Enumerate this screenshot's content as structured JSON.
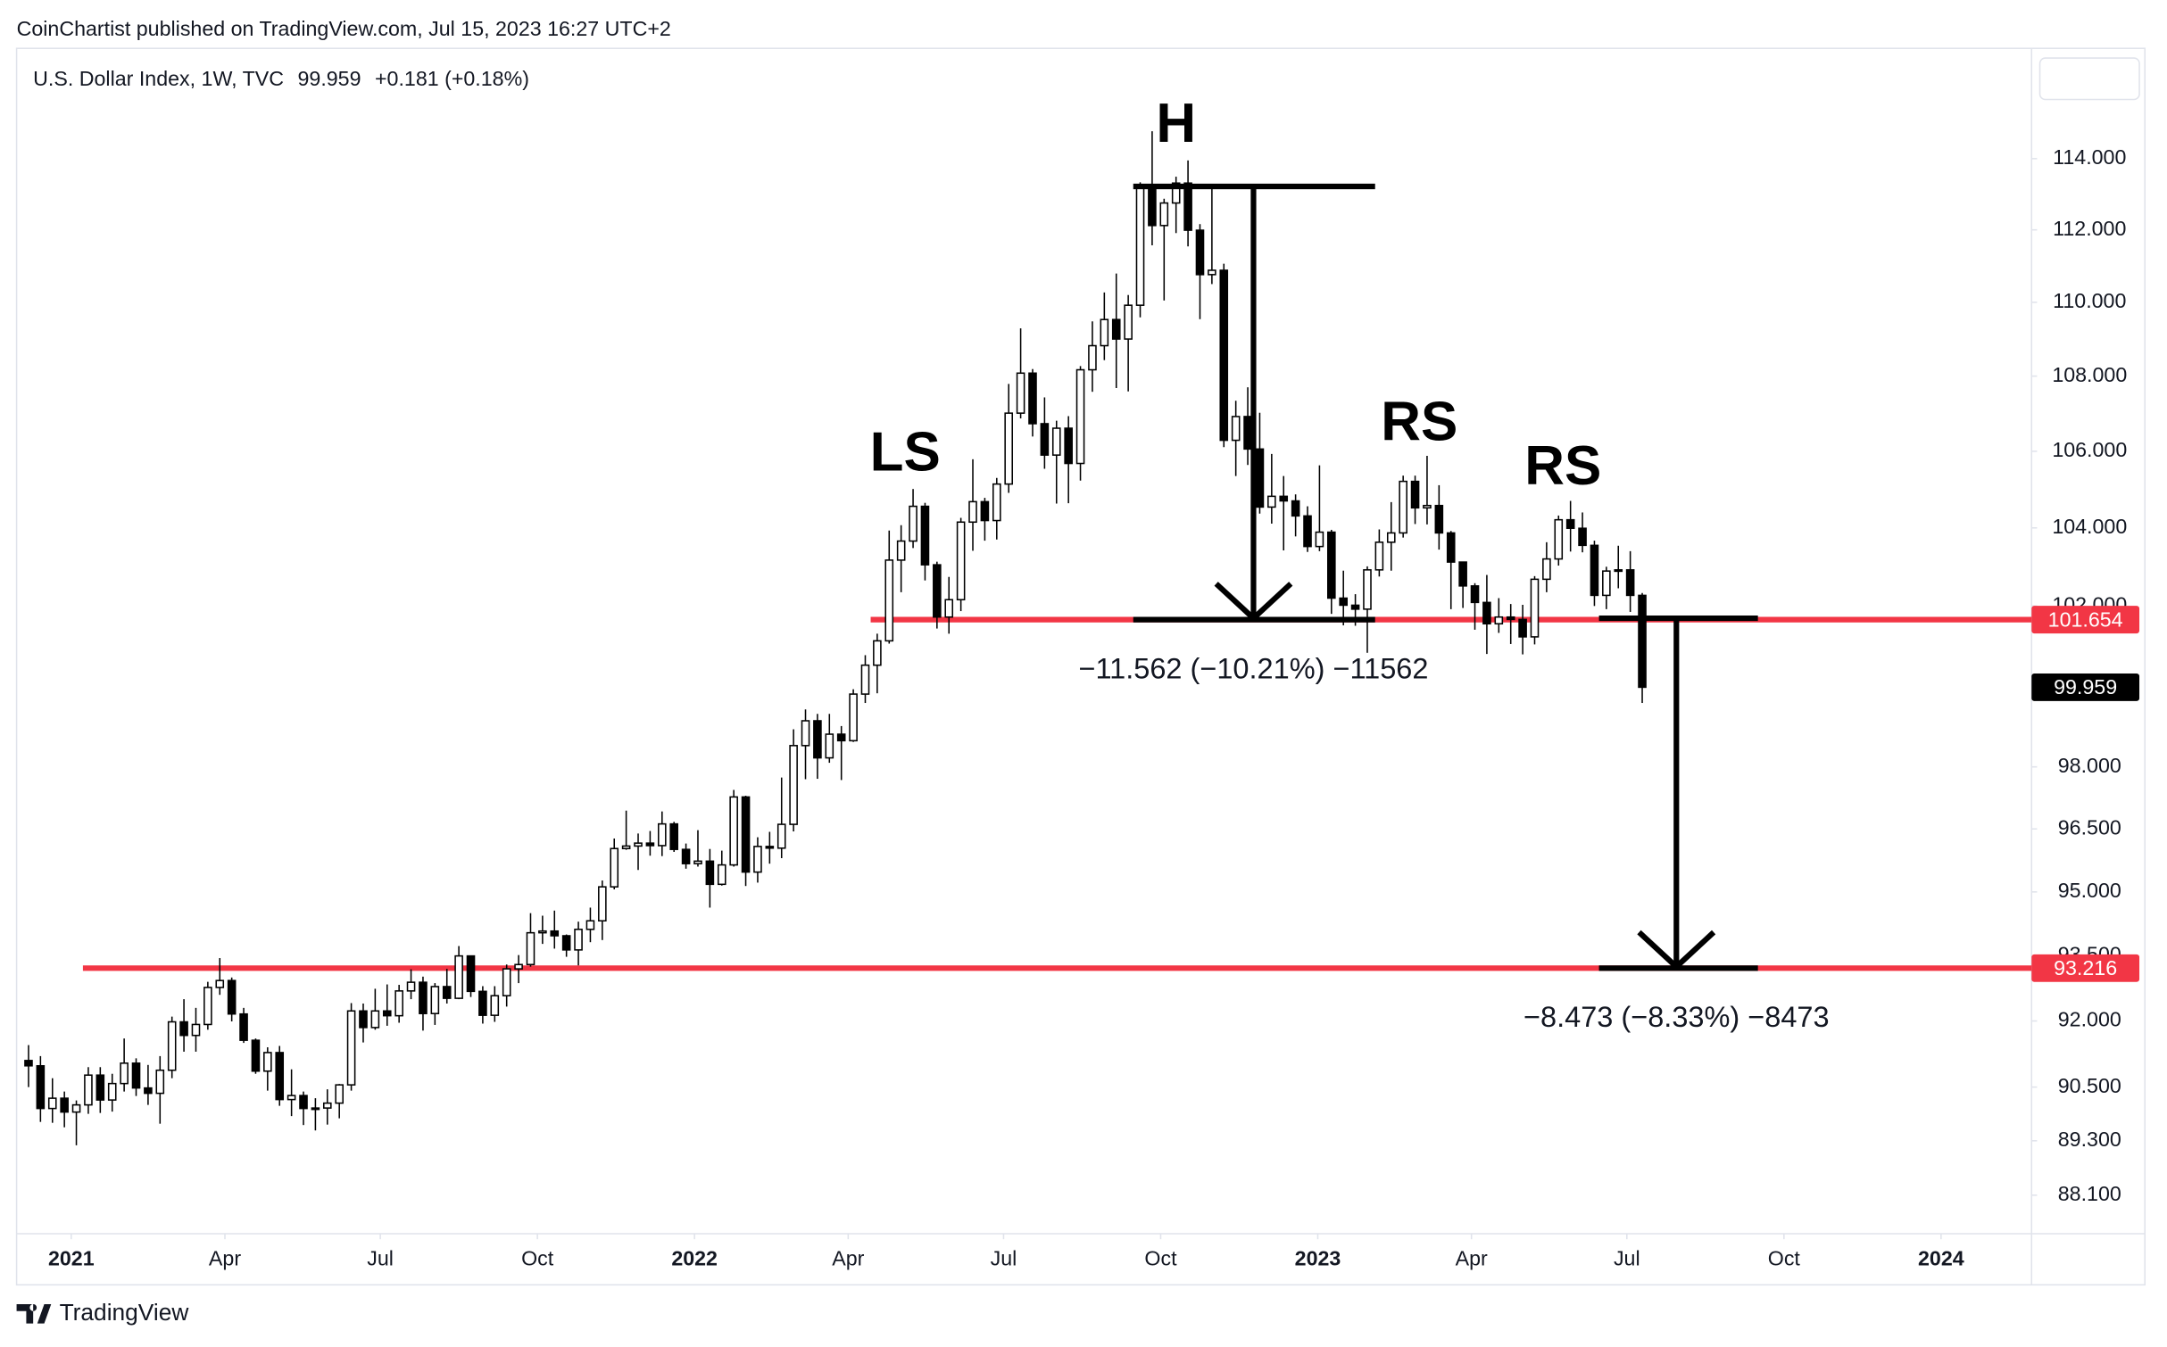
{
  "attribution": "CoinChartist published on TradingView.com, Jul 15, 2023 16:27 UTC+2",
  "footer": "TradingView",
  "chart_data": {
    "type": "candlestick",
    "symbol": "U.S. Dollar Index, 1W, TVC",
    "last_price": 99.959,
    "change": "+0.181 (+0.18%)",
    "log_scale": true,
    "ylim": [
      87.26,
      117.17
    ],
    "yticks": [
      {
        "value": 114,
        "label": "114.000"
      },
      {
        "value": 112,
        "label": "112.000"
      },
      {
        "value": 110,
        "label": "110.000"
      },
      {
        "value": 108,
        "label": "108.000"
      },
      {
        "value": 106,
        "label": "106.000"
      },
      {
        "value": 104,
        "label": "104.000"
      },
      {
        "value": 102,
        "label": "102.000"
      },
      {
        "value": 98,
        "label": "98.000"
      },
      {
        "value": 96.5,
        "label": "96.500"
      },
      {
        "value": 95,
        "label": "95.000"
      },
      {
        "value": 93.5,
        "label": "93.500"
      },
      {
        "value": 92,
        "label": "92.000"
      },
      {
        "value": 90.5,
        "label": "90.500"
      },
      {
        "value": 89.3,
        "label": "89.300"
      },
      {
        "value": 88.1,
        "label": "88.100"
      }
    ],
    "xlim": [
      "2020-11-30",
      "2024-02-23"
    ],
    "xticks": [
      {
        "value": "2021-01-01",
        "label": "2021"
      },
      {
        "value": "2021-04-01",
        "label": "Apr"
      },
      {
        "value": "2021-07-01",
        "label": "Jul"
      },
      {
        "value": "2021-10-01",
        "label": "Oct"
      },
      {
        "value": "2022-01-01",
        "label": "2022"
      },
      {
        "value": "2022-04-01",
        "label": "Apr"
      },
      {
        "value": "2022-07-01",
        "label": "Jul"
      },
      {
        "value": "2022-10-01",
        "label": "Oct"
      },
      {
        "value": "2023-01-01",
        "label": "2023"
      },
      {
        "value": "2023-04-01",
        "label": "Apr"
      },
      {
        "value": "2023-07-01",
        "label": "Jul"
      },
      {
        "value": "2023-10-01",
        "label": "Oct"
      },
      {
        "value": "2024-01-01",
        "label": "2024"
      }
    ],
    "up_color": "#ffffff",
    "down_color": "#000000",
    "levels": [
      {
        "value": 101.654,
        "color": "#f23645"
      },
      {
        "value": 93.216,
        "color": "#f23645"
      }
    ],
    "annotations": [
      "LS",
      "H",
      "RS",
      "RS"
    ],
    "measurements": [
      {
        "from": 113.216,
        "to": 101.654,
        "label": "−11.562 (−10.21%) −11562"
      },
      {
        "from": 101.689,
        "to": 93.216,
        "label": "−8.473 (−8.33%) −8473"
      }
    ],
    "x": [
      "2020-12-07",
      "2020-12-14",
      "2020-12-21",
      "2020-12-28",
      "2021-01-04",
      "2021-01-11",
      "2021-01-18",
      "2021-01-25",
      "2021-02-01",
      "2021-02-08",
      "2021-02-15",
      "2021-02-22",
      "2021-03-01",
      "2021-03-08",
      "2021-03-15",
      "2021-03-22",
      "2021-03-29",
      "2021-04-05",
      "2021-04-12",
      "2021-04-19",
      "2021-04-26",
      "2021-05-03",
      "2021-05-10",
      "2021-05-17",
      "2021-05-24",
      "2021-05-31",
      "2021-06-07",
      "2021-06-14",
      "2021-06-21",
      "2021-06-28",
      "2021-07-05",
      "2021-07-12",
      "2021-07-19",
      "2021-07-26",
      "2021-08-02",
      "2021-08-09",
      "2021-08-16",
      "2021-08-23",
      "2021-08-30",
      "2021-09-06",
      "2021-09-13",
      "2021-09-20",
      "2021-09-27",
      "2021-10-04",
      "2021-10-11",
      "2021-10-18",
      "2021-10-25",
      "2021-11-01",
      "2021-11-08",
      "2021-11-15",
      "2021-11-22",
      "2021-11-29",
      "2021-12-06",
      "2021-12-13",
      "2021-12-20",
      "2021-12-27",
      "2022-01-03",
      "2022-01-10",
      "2022-01-17",
      "2022-01-24",
      "2022-01-31",
      "2022-02-07",
      "2022-02-14",
      "2022-02-21",
      "2022-02-28",
      "2022-03-07",
      "2022-03-14",
      "2022-03-21",
      "2022-03-28",
      "2022-04-04",
      "2022-04-11",
      "2022-04-18",
      "2022-04-25",
      "2022-05-02",
      "2022-05-09",
      "2022-05-16",
      "2022-05-23",
      "2022-05-30",
      "2022-06-06",
      "2022-06-13",
      "2022-06-20",
      "2022-06-27",
      "2022-07-04",
      "2022-07-11",
      "2022-07-18",
      "2022-07-25",
      "2022-08-01",
      "2022-08-08",
      "2022-08-15",
      "2022-08-22",
      "2022-08-29",
      "2022-09-05",
      "2022-09-12",
      "2022-09-19",
      "2022-09-26",
      "2022-10-03",
      "2022-10-10",
      "2022-10-17",
      "2022-10-24",
      "2022-10-31",
      "2022-11-07",
      "2022-11-14",
      "2022-11-21",
      "2022-11-28",
      "2022-12-05",
      "2022-12-12",
      "2022-12-19",
      "2022-12-26",
      "2023-01-02",
      "2023-01-09",
      "2023-01-16",
      "2023-01-23",
      "2023-01-30",
      "2023-02-06",
      "2023-02-13",
      "2023-02-20",
      "2023-02-27",
      "2023-03-06",
      "2023-03-13",
      "2023-03-20",
      "2023-03-27",
      "2023-04-03",
      "2023-04-10",
      "2023-04-17",
      "2023-04-24",
      "2023-05-01",
      "2023-05-08",
      "2023-05-15",
      "2023-05-22",
      "2023-05-29",
      "2023-06-05",
      "2023-06-12",
      "2023-06-19",
      "2023-06-26",
      "2023-07-03",
      "2023-07-10"
    ],
    "ohlc": [
      [
        91.1,
        91.45,
        90.5,
        90.98
      ],
      [
        90.98,
        91.2,
        89.72,
        90.02
      ],
      [
        90.02,
        90.7,
        89.7,
        90.25
      ],
      [
        90.25,
        90.4,
        89.6,
        89.94
      ],
      [
        89.94,
        90.2,
        89.2,
        90.1
      ],
      [
        90.1,
        90.95,
        89.9,
        90.77
      ],
      [
        90.77,
        90.95,
        89.92,
        90.21
      ],
      [
        90.21,
        90.8,
        89.95,
        90.58
      ],
      [
        90.58,
        91.6,
        90.4,
        91.04
      ],
      [
        91.04,
        91.15,
        90.3,
        90.48
      ],
      [
        90.48,
        91.0,
        90.1,
        90.36
      ],
      [
        90.36,
        91.2,
        89.68,
        90.88
      ],
      [
        90.88,
        92.1,
        90.7,
        91.98
      ],
      [
        91.98,
        92.5,
        91.3,
        91.67
      ],
      [
        91.67,
        92.3,
        91.3,
        91.92
      ],
      [
        91.92,
        92.9,
        91.8,
        92.77
      ],
      [
        92.77,
        93.45,
        92.6,
        92.93
      ],
      [
        92.93,
        93.0,
        91.99,
        92.16
      ],
      [
        92.16,
        92.3,
        91.5,
        91.56
      ],
      [
        91.56,
        91.6,
        90.8,
        90.86
      ],
      [
        90.86,
        91.4,
        90.42,
        91.28
      ],
      [
        91.28,
        91.43,
        90.08,
        90.22
      ],
      [
        90.22,
        90.9,
        89.85,
        90.31
      ],
      [
        90.31,
        90.4,
        89.65,
        90.02
      ],
      [
        90.02,
        90.25,
        89.53,
        90.03
      ],
      [
        90.03,
        90.45,
        89.66,
        90.14
      ],
      [
        90.14,
        90.57,
        89.8,
        90.55
      ],
      [
        90.55,
        92.41,
        90.42,
        92.23
      ],
      [
        92.23,
        92.4,
        91.51,
        91.85
      ],
      [
        91.85,
        92.74,
        91.8,
        92.23
      ],
      [
        92.23,
        92.84,
        91.89,
        92.12
      ],
      [
        92.12,
        92.83,
        91.96,
        92.69
      ],
      [
        92.69,
        93.19,
        92.5,
        92.89
      ],
      [
        92.89,
        93.02,
        91.78,
        92.17
      ],
      [
        92.17,
        92.87,
        91.91,
        92.79
      ],
      [
        92.79,
        93.2,
        92.4,
        92.52
      ],
      [
        92.52,
        93.73,
        92.5,
        93.5
      ],
      [
        93.5,
        93.5,
        92.55,
        92.68
      ],
      [
        92.68,
        92.8,
        91.94,
        92.13
      ],
      [
        92.13,
        92.8,
        91.98,
        92.58
      ],
      [
        92.58,
        93.3,
        92.33,
        93.2
      ],
      [
        93.2,
        93.52,
        92.87,
        93.3
      ],
      [
        93.3,
        94.5,
        93.25,
        94.04
      ],
      [
        94.04,
        94.44,
        93.78,
        94.08
      ],
      [
        94.08,
        94.56,
        93.67,
        93.97
      ],
      [
        93.97,
        94.0,
        93.48,
        93.64
      ],
      [
        93.64,
        94.3,
        93.28,
        94.12
      ],
      [
        94.12,
        94.63,
        93.82,
        94.32
      ],
      [
        94.32,
        95.27,
        93.87,
        95.12
      ],
      [
        95.12,
        96.27,
        95.06,
        96.03
      ],
      [
        96.03,
        96.94,
        96.0,
        96.09
      ],
      [
        96.09,
        96.39,
        95.52,
        96.16
      ],
      [
        96.16,
        96.45,
        95.86,
        96.1
      ],
      [
        96.1,
        96.92,
        95.85,
        96.62
      ],
      [
        96.62,
        96.67,
        95.95,
        96.01
      ],
      [
        96.01,
        96.15,
        95.55,
        95.67
      ],
      [
        95.67,
        96.47,
        95.6,
        95.73
      ],
      [
        95.73,
        96.02,
        94.63,
        95.18
      ],
      [
        95.18,
        95.98,
        95.15,
        95.64
      ],
      [
        95.64,
        97.44,
        95.6,
        97.27
      ],
      [
        97.27,
        97.3,
        95.14,
        95.47
      ],
      [
        95.47,
        96.3,
        95.22,
        96.08
      ],
      [
        96.08,
        96.43,
        95.67,
        96.04
      ],
      [
        96.04,
        97.74,
        95.8,
        96.61
      ],
      [
        96.61,
        98.92,
        96.44,
        98.52
      ],
      [
        98.52,
        99.41,
        97.7,
        99.13
      ],
      [
        99.13,
        99.3,
        97.71,
        98.22
      ],
      [
        98.22,
        99.3,
        98.1,
        98.8
      ],
      [
        98.8,
        99.0,
        97.68,
        98.64
      ],
      [
        98.64,
        99.91,
        98.61,
        99.79
      ],
      [
        99.79,
        100.76,
        99.57,
        100.51
      ],
      [
        100.51,
        101.3,
        99.81,
        101.12
      ],
      [
        101.12,
        103.93,
        101.05,
        103.17
      ],
      [
        103.17,
        104.07,
        102.35,
        103.66
      ],
      [
        103.66,
        105.01,
        103.48,
        104.56
      ],
      [
        104.56,
        104.65,
        102.65,
        103.05
      ],
      [
        103.05,
        103.13,
        101.43,
        101.72
      ],
      [
        101.72,
        102.74,
        101.3,
        102.16
      ],
      [
        102.16,
        104.26,
        101.87,
        104.15
      ],
      [
        104.15,
        105.79,
        103.41,
        104.68
      ],
      [
        104.68,
        104.78,
        103.67,
        104.19
      ],
      [
        104.19,
        105.3,
        103.7,
        105.14
      ],
      [
        105.14,
        107.79,
        104.91,
        107.01
      ],
      [
        107.01,
        109.29,
        106.87,
        108.08
      ],
      [
        108.08,
        108.19,
        106.39,
        106.73
      ],
      [
        106.73,
        107.43,
        105.54,
        105.9
      ],
      [
        105.9,
        106.81,
        104.63,
        106.61
      ],
      [
        106.61,
        106.93,
        104.64,
        105.68
      ],
      [
        105.68,
        108.27,
        105.23,
        108.17
      ],
      [
        108.17,
        109.48,
        107.58,
        108.82
      ],
      [
        108.82,
        110.27,
        108.43,
        109.53
      ],
      [
        109.53,
        110.79,
        107.68,
        109.0
      ],
      [
        109.0,
        110.2,
        107.59,
        109.92
      ],
      [
        109.92,
        113.33,
        109.59,
        113.19
      ],
      [
        113.19,
        114.78,
        111.57,
        112.12
      ],
      [
        112.12,
        112.87,
        110.05,
        112.75
      ],
      [
        112.75,
        113.49,
        111.91,
        113.31
      ],
      [
        113.31,
        113.95,
        111.54,
        111.99
      ],
      [
        111.99,
        112.16,
        109.54,
        110.76
      ],
      [
        110.76,
        113.15,
        110.5,
        110.88
      ],
      [
        110.88,
        111.06,
        106.11,
        106.29
      ],
      [
        106.29,
        107.34,
        105.35,
        106.92
      ],
      [
        106.92,
        107.7,
        105.64,
        106.06
      ],
      [
        106.06,
        107.02,
        104.37,
        104.54
      ],
      [
        104.54,
        105.93,
        104.11,
        104.82
      ],
      [
        104.82,
        105.35,
        103.42,
        104.7
      ],
      [
        104.7,
        104.87,
        103.78,
        104.31
      ],
      [
        104.31,
        104.56,
        103.38,
        103.52
      ],
      [
        103.52,
        105.63,
        103.4,
        103.89
      ],
      [
        103.89,
        103.95,
        101.8,
        102.2
      ],
      [
        102.2,
        102.9,
        101.51,
        102.02
      ],
      [
        102.02,
        102.3,
        101.5,
        101.92
      ],
      [
        101.92,
        103.01,
        100.82,
        102.92
      ],
      [
        102.92,
        103.96,
        102.75,
        103.63
      ],
      [
        103.63,
        104.67,
        102.9,
        103.87
      ],
      [
        103.87,
        105.36,
        103.75,
        105.21
      ],
      [
        105.21,
        105.36,
        104.1,
        104.52
      ],
      [
        104.52,
        105.88,
        104.09,
        104.58
      ],
      [
        104.58,
        105.11,
        103.44,
        103.87
      ],
      [
        103.87,
        103.92,
        101.92,
        103.12
      ],
      [
        103.12,
        103.13,
        101.95,
        102.51
      ],
      [
        102.51,
        102.58,
        101.4,
        102.09
      ],
      [
        102.09,
        102.79,
        100.79,
        101.55
      ],
      [
        101.55,
        102.2,
        101.32,
        101.72
      ],
      [
        101.72,
        102.05,
        101.04,
        101.66
      ],
      [
        101.66,
        102.03,
        100.78,
        101.22
      ],
      [
        101.22,
        102.76,
        101.03,
        102.68
      ],
      [
        102.68,
        103.63,
        102.35,
        103.2
      ],
      [
        103.2,
        104.32,
        103.03,
        104.21
      ],
      [
        104.21,
        104.7,
        103.39,
        103.99
      ],
      [
        103.99,
        104.4,
        103.37,
        103.55
      ],
      [
        103.55,
        103.67,
        102.0,
        102.27
      ],
      [
        102.27,
        103.0,
        101.92,
        102.89
      ],
      [
        102.89,
        103.54,
        102.45,
        102.92
      ],
      [
        102.92,
        103.4,
        101.85,
        102.27
      ],
      [
        102.27,
        102.33,
        99.57,
        99.96
      ]
    ]
  }
}
